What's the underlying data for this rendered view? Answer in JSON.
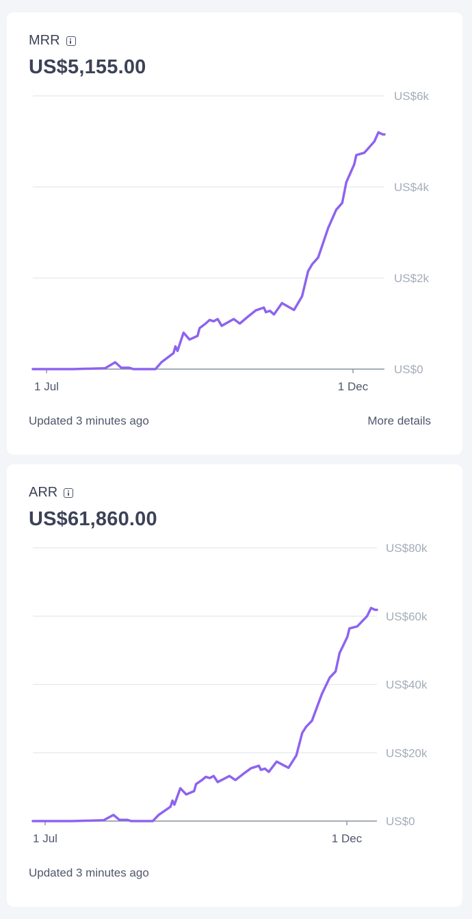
{
  "cards": [
    {
      "label": "MRR",
      "value": "US$5,155.00",
      "updated": "Updated 3 minutes ago",
      "more_details": "More details",
      "chart_data": {
        "type": "line",
        "x_ticks": [
          "1 Jul",
          "1 Dec"
        ],
        "y_ticks": [
          "US$6k",
          "US$4k",
          "US$2k",
          "US$0"
        ],
        "ylim": [
          0,
          6000
        ],
        "xlim": [
          0,
          175
        ],
        "grid": true,
        "line_color": "#8d63f0",
        "series": [
          {
            "x": [
              0,
              20,
              36,
              41,
              44,
              45,
              48,
              50,
              61,
              64,
              70,
              71,
              72,
              75,
              78,
              82,
              83,
              86,
              88,
              90,
              92,
              94,
              100,
              103,
              107,
              111,
              115,
              116,
              118,
              120,
              124,
              130,
              134,
              137,
              139,
              142,
              147,
              151,
              154,
              156,
              160,
              161,
              165,
              167,
              170,
              172,
              174,
              175
            ],
            "y": [
              0,
              0,
              20,
              150,
              30,
              30,
              30,
              0,
              0,
              150,
              350,
              500,
              400,
              800,
              650,
              730,
              900,
              1000,
              1080,
              1050,
              1100,
              950,
              1100,
              1000,
              1150,
              1290,
              1350,
              1250,
              1280,
              1200,
              1450,
              1300,
              1600,
              2150,
              2300,
              2450,
              3100,
              3500,
              3650,
              4100,
              4500,
              4700,
              4750,
              4850,
              5000,
              5200,
              5155,
              5155
            ]
          }
        ]
      }
    },
    {
      "label": "ARR",
      "value": "US$61,860.00",
      "updated": "Updated 3 minutes ago",
      "chart_data": {
        "type": "line",
        "x_ticks": [
          "1 Jul",
          "1 Dec"
        ],
        "y_ticks": [
          "US$80k",
          "US$60k",
          "US$40k",
          "US$20k",
          "US$0"
        ],
        "ylim": [
          0,
          80000
        ],
        "xlim": [
          0,
          175
        ],
        "grid": true,
        "line_color": "#8d63f0",
        "series": [
          {
            "x": [
              0,
              20,
              36,
              41,
              44,
              45,
              48,
              50,
              61,
              64,
              70,
              71,
              72,
              75,
              78,
              82,
              83,
              86,
              88,
              90,
              92,
              94,
              100,
              103,
              107,
              111,
              115,
              116,
              118,
              120,
              124,
              130,
              134,
              137,
              139,
              142,
              147,
              151,
              154,
              156,
              160,
              161,
              165,
              167,
              170,
              172,
              174,
              175
            ],
            "y": [
              0,
              0,
              240,
              1800,
              360,
              360,
              360,
              0,
              0,
              1800,
              4200,
              6000,
              4800,
              9600,
              7800,
              8760,
              10800,
              12000,
              12960,
              12600,
              13200,
              11400,
              13200,
              12000,
              13800,
              15480,
              16200,
              15000,
              15360,
              14400,
              17400,
              15600,
              19200,
              25800,
              27600,
              29400,
              37200,
              42000,
              43800,
              49200,
              54000,
              56400,
              57000,
              58200,
              60000,
              62400,
              61860,
              61860
            ]
          }
        ]
      }
    }
  ]
}
